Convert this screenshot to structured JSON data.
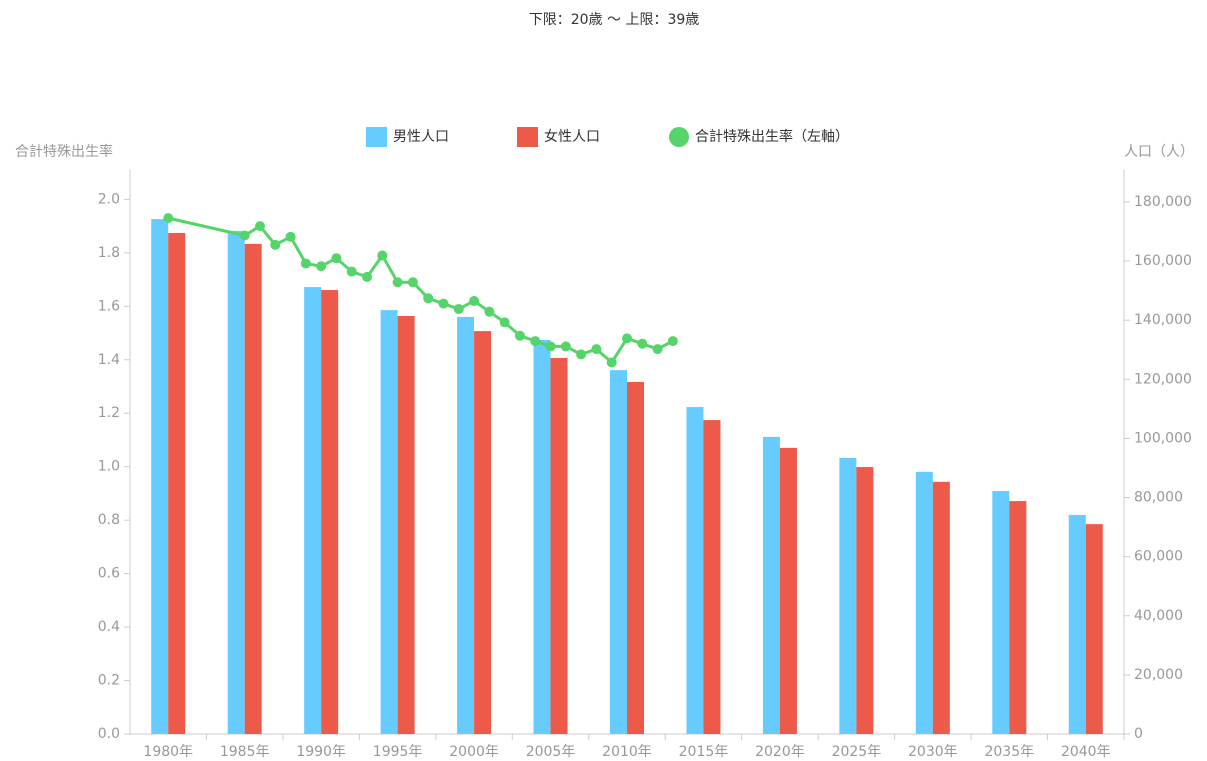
{
  "chart_data": {
    "type": "bar_line",
    "title": "下限：20歳 〜 上限：39歳",
    "y_label": "合計特殊出生率",
    "y2_label": "人口（人）",
    "categories": [
      "1980年",
      "1985年",
      "1990年",
      "1995年",
      "2000年",
      "2005年",
      "2010年",
      "2015年",
      "2020年",
      "2025年",
      "2030年",
      "2035年",
      "2040年"
    ],
    "series": [
      {
        "name": "男性人口",
        "color": "#66ccff",
        "axis": "y2",
        "type": "bar",
        "values": [
          174200,
          170200,
          151200,
          143400,
          141100,
          133300,
          123100,
          110600,
          100500,
          93400,
          88700,
          82200,
          74100
        ]
      },
      {
        "name": "女性人口",
        "color": "#ee5a4a",
        "axis": "y2",
        "type": "bar",
        "values": [
          169500,
          165800,
          150200,
          141400,
          136300,
          127200,
          119100,
          106200,
          96800,
          90300,
          85300,
          78800,
          71000
        ]
      },
      {
        "name": "合計特殊出生率（左軸）",
        "color": "#55d46a",
        "axis": "y",
        "type": "line",
        "x": [
          1980,
          1985,
          1986,
          1987,
          1988,
          1989,
          1990,
          1991,
          1992,
          1993,
          1994,
          1995,
          1996,
          1997,
          1998,
          1999,
          2000,
          2001,
          2002,
          2003,
          2004,
          2005,
          2006,
          2007,
          2008,
          2009,
          2010,
          2011,
          2012,
          2013
        ],
        "values": [
          1.93,
          1.865,
          1.9,
          1.83,
          1.86,
          1.76,
          1.75,
          1.78,
          1.73,
          1.71,
          1.79,
          1.69,
          1.69,
          1.63,
          1.61,
          1.59,
          1.62,
          1.58,
          1.54,
          1.49,
          1.47,
          1.45,
          1.45,
          1.42,
          1.44,
          1.39,
          1.48,
          1.46,
          1.44,
          1.47
        ]
      }
    ],
    "xlim": [
      1977.5,
      2042.5
    ],
    "ylim": [
      0,
      2.11
    ],
    "yticks": [
      {
        "value": 0,
        "label": "0.0"
      },
      0.2,
      0.4,
      0.6,
      0.8,
      {
        "value": 1,
        "label": "1.0"
      },
      1.2,
      1.4,
      1.6,
      1.8,
      {
        "value": 2,
        "label": "2.0"
      }
    ],
    "y2lim": [
      0,
      190800
    ],
    "y2ticks": [
      0,
      {
        "value": 20000,
        "label": "20,000"
      },
      {
        "value": 40000,
        "label": "40,000"
      },
      {
        "value": 60000,
        "label": "60,000"
      },
      {
        "value": 80000,
        "label": "80,000"
      },
      {
        "value": 100000,
        "label": "100,000"
      },
      {
        "value": 120000,
        "label": "120,000"
      },
      {
        "value": 140000,
        "label": "140,000"
      },
      {
        "value": 160000,
        "label": "160,000"
      },
      {
        "value": 180000,
        "label": "180,000"
      }
    ],
    "legend": "top"
  }
}
